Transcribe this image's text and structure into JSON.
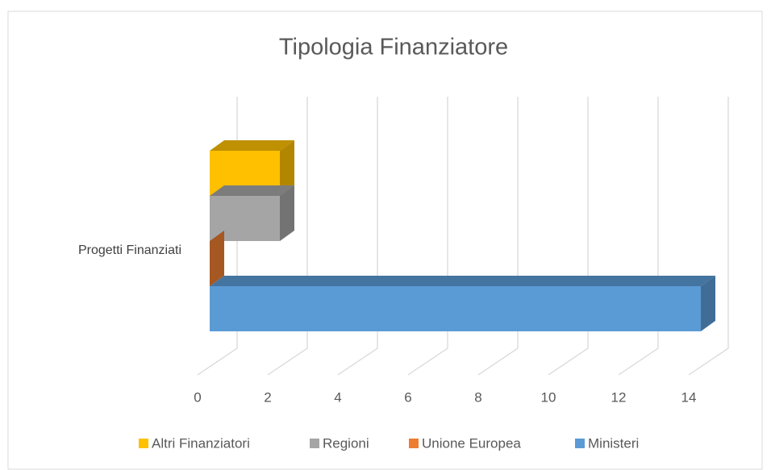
{
  "chart_data": {
    "type": "bar3d",
    "title": "Tipologia Finanziatore",
    "categories": [
      "Progetti Finanziati"
    ],
    "series": [
      {
        "name": "Altri Finanziatori",
        "color": "#ffc000",
        "values": [
          2
        ]
      },
      {
        "name": "Regioni",
        "color": "#a5a5a5",
        "values": [
          2
        ]
      },
      {
        "name": "Unione Europea",
        "color": "#ed7d31",
        "values": [
          0
        ]
      },
      {
        "name": "Ministeri",
        "color": "#5b9bd5",
        "values": [
          14
        ]
      }
    ],
    "xlim": [
      0,
      14
    ],
    "xticks": [
      0,
      2,
      4,
      6,
      8,
      10,
      12,
      14
    ],
    "grid": true,
    "legend": "bottom"
  }
}
